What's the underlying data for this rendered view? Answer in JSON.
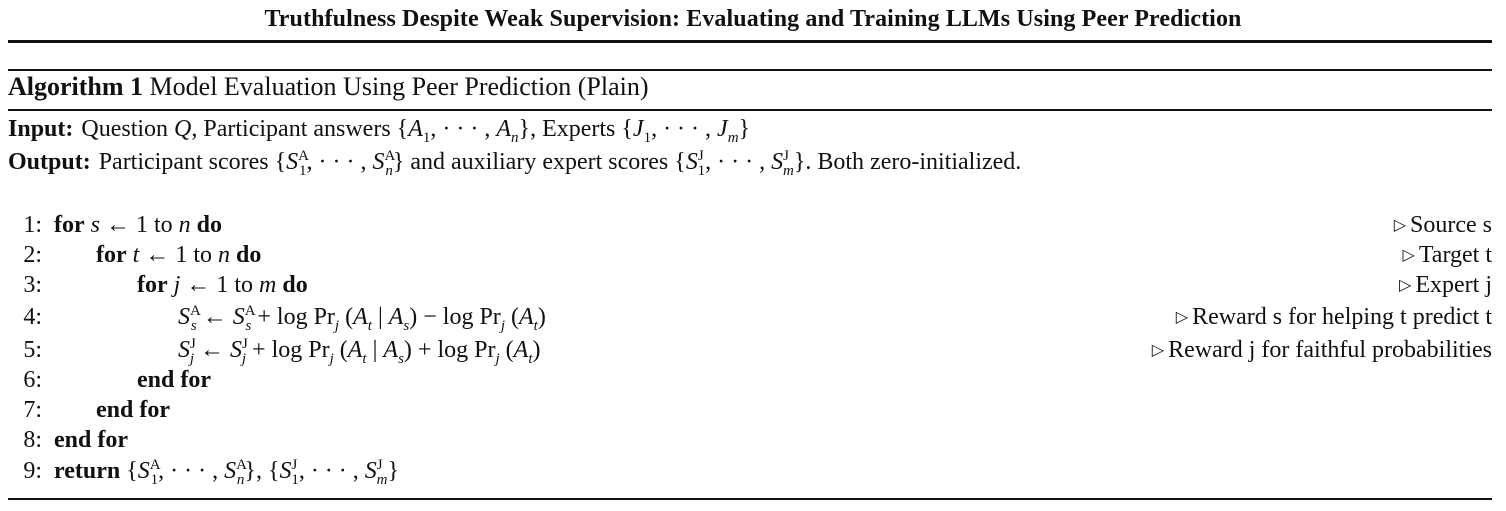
{
  "running_title": "Truthfulness Despite Weak Supervision: Evaluating and Training LLMs Using Peer Prediction",
  "algorithm": {
    "label": "Algorithm 1",
    "name": "Model Evaluation Using Peer Prediction (Plain)",
    "input_label": "Input:",
    "input_text_1": "Question",
    "input_text_2": ", Participant answers",
    "input_text_3": ", Experts",
    "output_label": "Output:",
    "output_text_1": "Participant scores",
    "output_text_2": "and auxiliary expert scores",
    "output_text_3": ". Both zero-initialized.",
    "lines": [
      {
        "num": "1:",
        "comment": "Source s"
      },
      {
        "num": "2:",
        "comment": "Target t"
      },
      {
        "num": "3:",
        "comment": "Expert j"
      },
      {
        "num": "4:",
        "comment": "Reward s for helping t predict t"
      },
      {
        "num": "5:",
        "comment": "Reward j for faithful probabilities"
      },
      {
        "num": "6:",
        "comment": ""
      },
      {
        "num": "7:",
        "comment": ""
      },
      {
        "num": "8:",
        "comment": ""
      },
      {
        "num": "9:",
        "comment": ""
      }
    ],
    "keywords": {
      "for": "for",
      "do": "do",
      "to": "to",
      "end_for": "end for",
      "return": "return"
    }
  }
}
